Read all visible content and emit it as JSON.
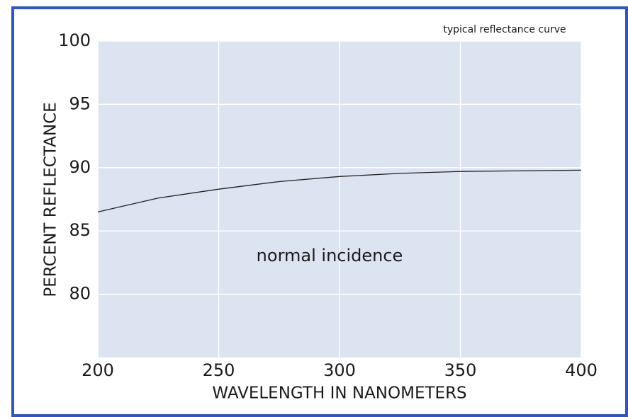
{
  "chart_data": {
    "type": "line",
    "annotations": [
      "typical reflectance curve",
      "normal incidence"
    ],
    "xlabel": "WAVELENGTH IN NANOMETERS",
    "ylabel": "PERCENT REFLECTANCE",
    "x": [
      200,
      225,
      250,
      275,
      300,
      325,
      350,
      375,
      400
    ],
    "series": [
      {
        "color": "#222222",
        "values": [
          86.5,
          87.6,
          88.3,
          88.9,
          89.3,
          89.55,
          89.7,
          89.75,
          89.8
        ]
      }
    ],
    "xlim": [
      200,
      400
    ],
    "xticks": [
      200,
      250,
      300,
      350,
      400
    ],
    "ylim": [
      75,
      100
    ],
    "yticks": [
      80,
      85,
      90,
      95,
      100
    ],
    "grid": true
  }
}
